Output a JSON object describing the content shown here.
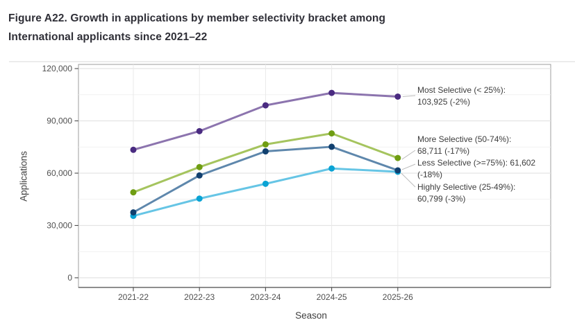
{
  "figure_title": {
    "line1": "Figure A22. Growth in applications by member selectivity bracket among",
    "line2": "International applicants since 2021–22"
  },
  "chart_data": {
    "type": "line",
    "title": "Figure A22. Growth in applications by member selectivity bracket among International applicants since 2021–22",
    "xlabel": "Season",
    "ylabel": "Applications",
    "categories": [
      "2021-22",
      "2022-23",
      "2023-24",
      "2024-25",
      "2025-26"
    ],
    "ylim": [
      0,
      120000
    ],
    "yticks": [
      {
        "value": 0,
        "label": "0"
      },
      {
        "value": 30000,
        "label": "30,000"
      },
      {
        "value": 60000,
        "label": "60,000"
      },
      {
        "value": 90000,
        "label": "90,000"
      },
      {
        "value": 120000,
        "label": "120,000"
      }
    ],
    "minor_yticks": [
      15000,
      45000,
      75000,
      105000
    ],
    "grid": {
      "major": true,
      "minor": true,
      "vertical_at_categories": true
    },
    "legend_position": "annotations-right-of-last-point",
    "series": [
      {
        "name": "Most Selective (< 25%)",
        "line_color": "#8c74ae",
        "point_color": "#4a2b81",
        "values": [
          73400,
          84100,
          98900,
          106050,
          103925
        ],
        "final_value": 103925,
        "change": "-2%"
      },
      {
        "name": "More Selective (50-74%)",
        "line_color": "#a5c45e",
        "point_color": "#6f9d12",
        "values": [
          49000,
          63500,
          76500,
          82800,
          68711
        ],
        "final_value": 68711,
        "change": "-17%"
      },
      {
        "name": "Highly Selective (25-49%)",
        "line_color": "#66c5e5",
        "point_color": "#0aa3d4",
        "values": [
          35500,
          45400,
          53900,
          62680,
          60799
        ],
        "final_value": 60799,
        "change": "-3%"
      },
      {
        "name": "Less Selective (>=75%)",
        "line_color": "#5e87ac",
        "point_color": "#11406f",
        "values": [
          37500,
          58700,
          72500,
          75125,
          61602
        ],
        "final_value": 61602,
        "change": "-18%"
      }
    ],
    "annotations": [
      {
        "lines": [
          "Most Selective (< 25%):",
          "103,925 (-2%)"
        ]
      },
      {
        "lines": [
          "More Selective (50-74%):",
          "68,711 (-17%)"
        ]
      },
      {
        "lines": [
          "Less Selective (>=75%): 61,602",
          "(-18%)"
        ]
      },
      {
        "lines": [
          "Highly Selective (25-49%):",
          "60,799 (-3%)"
        ]
      }
    ],
    "colors": {
      "major_grid": "#e3e3e3",
      "minor_grid": "#f1f1f1",
      "panel_border": "#9c9c9c",
      "axis_line": "#4a4a4a",
      "tick_label": "#4f4f4f",
      "annotation_text": "#3c3c3c",
      "leader_line": "#bcbcbc",
      "title_text": "#2f2f37"
    }
  }
}
